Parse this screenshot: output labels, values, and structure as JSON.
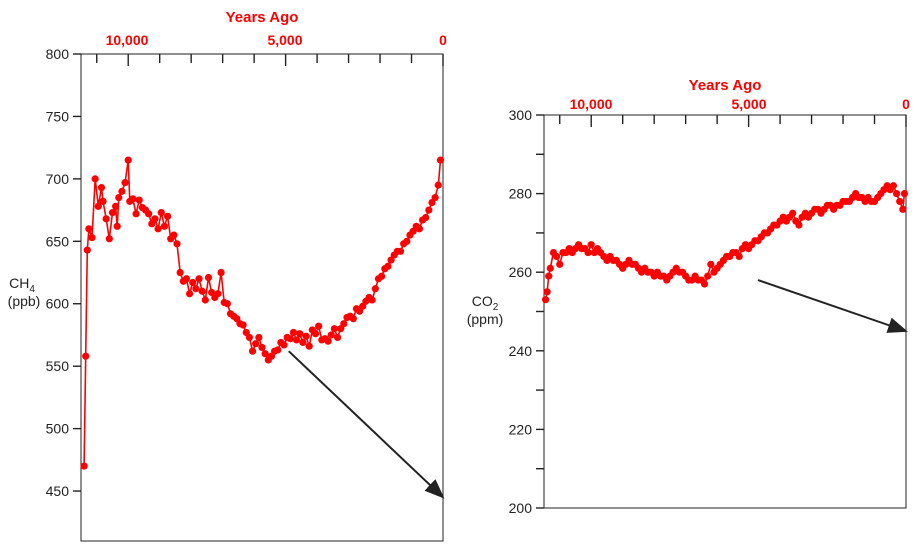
{
  "colors": {
    "series": "#ff0000",
    "accent_text": "#ff0000",
    "arrow": "#222222",
    "axis": "#222222"
  },
  "chart_data": [
    {
      "type": "scatter",
      "title": "",
      "x_axis_title": "Years Ago",
      "x_tick_labels": [
        "10,000",
        "5,000",
        "0"
      ],
      "x_tick_values": [
        10000,
        5000,
        0
      ],
      "x_reversed": true,
      "xlim": [
        11500,
        0
      ],
      "ylabel_main": "CH",
      "ylabel_sub": "4",
      "ylabel_units": "(ppb)",
      "ylim": [
        410,
        800
      ],
      "y_tick_values": [
        450,
        500,
        550,
        600,
        650,
        700,
        750,
        800
      ],
      "y_tick_labels": [
        "450",
        "500",
        "550",
        "600",
        "650",
        "700",
        "750",
        "800"
      ],
      "grid": false,
      "series": [
        {
          "x": [
            11400,
            11350,
            11300,
            11250,
            11150,
            11050,
            10950,
            10850,
            10800,
            10700,
            10600,
            10500,
            10400,
            10350,
            10300,
            10200,
            10100,
            10000,
            9950,
            9850,
            9750,
            9650,
            9550,
            9450,
            9350,
            9250,
            9150,
            9050,
            8950,
            8850,
            8750,
            8650,
            8550,
            8450,
            8350,
            8250,
            8150,
            8050,
            7950,
            7850,
            7750,
            7650,
            7550,
            7450,
            7350,
            7250,
            7150,
            7050,
            6950,
            6850,
            6750,
            6650,
            6550,
            6450,
            6350,
            6250,
            6150,
            6050,
            5950,
            5850,
            5750,
            5650,
            5550,
            5450,
            5350,
            5250,
            5150,
            5050,
            4950,
            4850,
            4750,
            4650,
            4550,
            4450,
            4350,
            4250,
            4150,
            4050,
            3950,
            3850,
            3750,
            3650,
            3550,
            3450,
            3350,
            3250,
            3150,
            3050,
            2950,
            2850,
            2750,
            2650,
            2550,
            2450,
            2350,
            2250,
            2150,
            2050,
            1950,
            1850,
            1750,
            1650,
            1550,
            1450,
            1350,
            1250,
            1150,
            1050,
            950,
            850,
            750,
            650,
            550,
            450,
            350,
            250,
            150,
            80
          ],
          "values": [
            470,
            558,
            643,
            660,
            653,
            700,
            678,
            693,
            682,
            668,
            652,
            673,
            678,
            662,
            685,
            690,
            697,
            715,
            682,
            684,
            672,
            683,
            677,
            675,
            672,
            664,
            668,
            660,
            673,
            662,
            670,
            652,
            655,
            648,
            625,
            618,
            620,
            608,
            617,
            612,
            620,
            610,
            603,
            621,
            609,
            605,
            608,
            625,
            601,
            600,
            592,
            590,
            588,
            584,
            583,
            577,
            573,
            562,
            568,
            573,
            565,
            560,
            555,
            558,
            562,
            563,
            569,
            567,
            573,
            572,
            577,
            571,
            576,
            569,
            574,
            566,
            579,
            576,
            582,
            571,
            572,
            570,
            575,
            580,
            573,
            580,
            584,
            589,
            590,
            588,
            596,
            594,
            598,
            602,
            605,
            603,
            612,
            620,
            622,
            628,
            630,
            635,
            639,
            642,
            642,
            648,
            650,
            655,
            658,
            662,
            660,
            667,
            669,
            675,
            681,
            685,
            695,
            715
          ]
        }
      ],
      "annotations": [
        {
          "type": "arrow",
          "from": [
            4900,
            562
          ],
          "to": [
            0,
            445
          ]
        }
      ]
    },
    {
      "type": "scatter",
      "title": "",
      "x_axis_title": "Years Ago",
      "x_tick_labels": [
        "10,000",
        "5,000",
        "0"
      ],
      "x_tick_values": [
        10000,
        5000,
        0
      ],
      "x_reversed": true,
      "xlim": [
        11500,
        0
      ],
      "ylabel_main": "CO",
      "ylabel_sub": "2",
      "ylabel_units": "(ppm)",
      "ylim": [
        200,
        300
      ],
      "y_tick_values": [
        200,
        220,
        240,
        260,
        280,
        300
      ],
      "y_tick_labels": [
        "200",
        "220",
        "240",
        "260",
        "280",
        "300"
      ],
      "y_minor_ticks": [
        210,
        230,
        250,
        270,
        290
      ],
      "grid": false,
      "series": [
        {
          "x": [
            11450,
            11400,
            11350,
            11300,
            11200,
            11100,
            11000,
            10900,
            10800,
            10700,
            10600,
            10500,
            10400,
            10300,
            10200,
            10100,
            10000,
            9900,
            9800,
            9700,
            9600,
            9500,
            9400,
            9300,
            9200,
            9100,
            9000,
            8900,
            8800,
            8700,
            8600,
            8500,
            8400,
            8300,
            8200,
            8100,
            8000,
            7900,
            7800,
            7700,
            7600,
            7500,
            7400,
            7300,
            7200,
            7100,
            7000,
            6900,
            6800,
            6700,
            6600,
            6500,
            6400,
            6300,
            6200,
            6100,
            6000,
            5900,
            5800,
            5700,
            5600,
            5500,
            5400,
            5300,
            5200,
            5100,
            5000,
            4900,
            4800,
            4700,
            4600,
            4500,
            4400,
            4300,
            4200,
            4100,
            4000,
            3900,
            3800,
            3700,
            3600,
            3500,
            3400,
            3300,
            3200,
            3100,
            3000,
            2900,
            2800,
            2700,
            2600,
            2500,
            2400,
            2300,
            2200,
            2100,
            2000,
            1900,
            1800,
            1700,
            1600,
            1500,
            1400,
            1300,
            1200,
            1100,
            1000,
            900,
            800,
            700,
            600,
            500,
            400,
            300,
            200,
            100,
            50
          ],
          "values": [
            253,
            255,
            259,
            261,
            265,
            264,
            262,
            265,
            265,
            266,
            265,
            266,
            267,
            266,
            266,
            265,
            267,
            265,
            266,
            265,
            264,
            263,
            264,
            263,
            263,
            262,
            261,
            262,
            263,
            262,
            262,
            261,
            260,
            261,
            260,
            260,
            259,
            260,
            259,
            259,
            258,
            259,
            260,
            261,
            260,
            260,
            259,
            258,
            258,
            259,
            258,
            258,
            257,
            259,
            262,
            260,
            261,
            262,
            263,
            264,
            264,
            265,
            265,
            264,
            266,
            267,
            266,
            267,
            268,
            268,
            269,
            270,
            270,
            271,
            272,
            272,
            273,
            274,
            273,
            274,
            275,
            273,
            272,
            274,
            275,
            274,
            275,
            276,
            276,
            275,
            276,
            277,
            277,
            276,
            277,
            277,
            278,
            278,
            278,
            279,
            280,
            279,
            279,
            278,
            279,
            278,
            278,
            279,
            280,
            281,
            282,
            281,
            282,
            280,
            278,
            276,
            280
          ]
        }
      ],
      "annotations": [
        {
          "type": "arrow",
          "from": [
            4700,
            258
          ],
          "to": [
            0,
            245
          ]
        }
      ]
    }
  ]
}
